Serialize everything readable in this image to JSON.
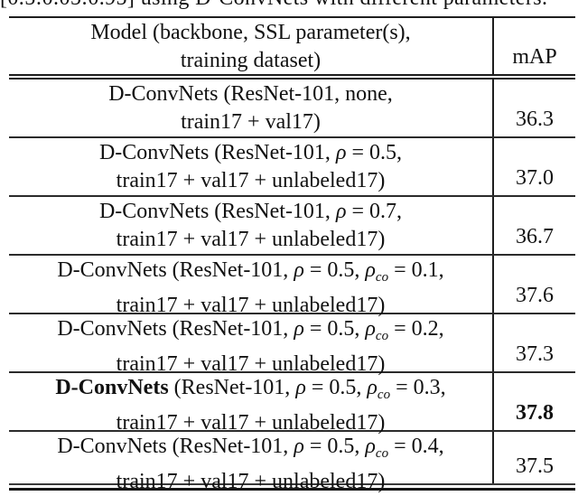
{
  "caption": {
    "clipped_text": "[0.5:0.05:0.95] using D-ConvNets with different parameters."
  },
  "table": {
    "header": {
      "model_line1": "Model (backbone, SSL parameter(s),",
      "model_line2": "training dataset)",
      "map_label": "mAP"
    },
    "rows": [
      {
        "line1": [
          {
            "t": "D-ConvNets (ResNet-101, none,"
          }
        ],
        "line2": "train17 + val17)",
        "map": [
          {
            "t": "36.3"
          }
        ]
      },
      {
        "line1": [
          {
            "t": "D-ConvNets (ResNet-101, "
          },
          {
            "t": "ρ",
            "i": true
          },
          {
            "t": " = 0.5,"
          }
        ],
        "line2": "train17 + val17 + unlabeled17)",
        "map": [
          {
            "t": "37.0"
          }
        ]
      },
      {
        "line1": [
          {
            "t": "D-ConvNets (ResNet-101, "
          },
          {
            "t": "ρ",
            "i": true
          },
          {
            "t": " = 0.7,"
          }
        ],
        "line2": "train17 + val17 + unlabeled17)",
        "map": [
          {
            "t": "36.7"
          }
        ]
      },
      {
        "line1": [
          {
            "t": "D-ConvNets (ResNet-101, "
          },
          {
            "t": "ρ",
            "i": true
          },
          {
            "t": " = 0.5, "
          },
          {
            "t": "ρ",
            "i": true
          },
          {
            "t": "co",
            "i": true,
            "sub": true
          },
          {
            "t": " = 0.1,"
          }
        ],
        "line2": "train17 + val17 + unlabeled17)",
        "map": [
          {
            "t": "37.6"
          }
        ]
      },
      {
        "line1": [
          {
            "t": "D-ConvNets (ResNet-101, "
          },
          {
            "t": "ρ",
            "i": true
          },
          {
            "t": " = 0.5, "
          },
          {
            "t": "ρ",
            "i": true
          },
          {
            "t": "co",
            "i": true,
            "sub": true
          },
          {
            "t": " = 0.2,"
          }
        ],
        "line2": "train17 + val17 + unlabeled17)",
        "map": [
          {
            "t": "37.3"
          }
        ]
      },
      {
        "line1": [
          {
            "t": "D-ConvNets",
            "b": true
          },
          {
            "t": " (ResNet-101, "
          },
          {
            "t": "ρ",
            "i": true
          },
          {
            "t": " = 0.5, "
          },
          {
            "t": "ρ",
            "i": true
          },
          {
            "t": "co",
            "i": true,
            "sub": true
          },
          {
            "t": " = 0.3,"
          }
        ],
        "line2": "train17 + val17 + unlabeled17)",
        "map": [
          {
            "t": "37.8",
            "b": true
          }
        ]
      },
      {
        "line1": [
          {
            "t": "D-ConvNets (ResNet-101, "
          },
          {
            "t": "ρ",
            "i": true
          },
          {
            "t": " = 0.5, "
          },
          {
            "t": "ρ",
            "i": true
          },
          {
            "t": "co",
            "i": true,
            "sub": true
          },
          {
            "t": " = 0.4,"
          }
        ],
        "line2": "train17 + val17 + unlabeled17)",
        "map": [
          {
            "t": "37.5"
          }
        ]
      }
    ]
  }
}
